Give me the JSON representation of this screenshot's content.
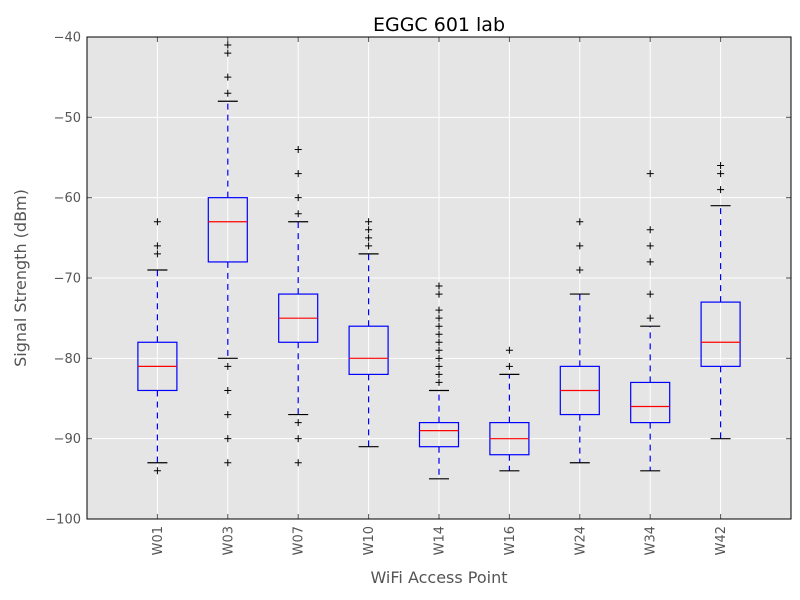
{
  "chart_data": {
    "type": "box",
    "title": "EGGC 601 lab",
    "xlabel": "WiFi Access Point",
    "ylabel": "Signal Strength (dBm)",
    "ylim": [
      -100,
      -40
    ],
    "yticks": [
      -100,
      -90,
      -80,
      -70,
      -60,
      -50,
      -40
    ],
    "ytick_labels": [
      "−100",
      "−90",
      "−80",
      "−70",
      "−60",
      "−50",
      "−40"
    ],
    "grid": true,
    "colors": {
      "background": "#e5e5e5",
      "grid": "#ffffff",
      "box": "#0000ff",
      "median": "#ff0000",
      "caps": "#000000",
      "fliers": "#000000",
      "tick_text": "#555555"
    },
    "categories": [
      "W01",
      "W03",
      "W07",
      "W10",
      "W14",
      "W16",
      "W24",
      "W34",
      "W42"
    ],
    "boxes": [
      {
        "label": "W01",
        "whisker_low": -93,
        "q1": -84,
        "median": -81,
        "q3": -78,
        "whisker_high": -69,
        "outliers": [
          -94,
          -67,
          -66,
          -63
        ]
      },
      {
        "label": "W03",
        "whisker_low": -80,
        "q1": -68,
        "median": -63,
        "q3": -60,
        "whisker_high": -48,
        "outliers": [
          -81,
          -84,
          -87,
          -90,
          -93,
          -47,
          -45,
          -42,
          -41
        ]
      },
      {
        "label": "W07",
        "whisker_low": -87,
        "q1": -78,
        "median": -75,
        "q3": -72,
        "whisker_high": -63,
        "outliers": [
          -88,
          -90,
          -93,
          -62,
          -60,
          -57,
          -54
        ]
      },
      {
        "label": "W10",
        "whisker_low": -91,
        "q1": -82,
        "median": -80,
        "q3": -76,
        "whisker_high": -67,
        "outliers": [
          -66,
          -65,
          -64,
          -63
        ]
      },
      {
        "label": "W14",
        "whisker_low": -95,
        "q1": -91,
        "median": -89,
        "q3": -88,
        "whisker_high": -84,
        "outliers": [
          -83,
          -82,
          -81,
          -80,
          -79,
          -78,
          -77,
          -76,
          -75,
          -74,
          -72,
          -71
        ]
      },
      {
        "label": "W16",
        "whisker_low": -94,
        "q1": -92,
        "median": -90,
        "q3": -88,
        "whisker_high": -82,
        "outliers": [
          -81,
          -79
        ]
      },
      {
        "label": "W24",
        "whisker_low": -93,
        "q1": -87,
        "median": -84,
        "q3": -81,
        "whisker_high": -72,
        "outliers": [
          -69,
          -66,
          -63
        ]
      },
      {
        "label": "W34",
        "whisker_low": -94,
        "q1": -88,
        "median": -86,
        "q3": -83,
        "whisker_high": -76,
        "outliers": [
          -75,
          -72,
          -68,
          -66,
          -64,
          -57
        ]
      },
      {
        "label": "W42",
        "whisker_low": -90,
        "q1": -81,
        "median": -78,
        "q3": -73,
        "whisker_high": -61,
        "outliers": [
          -59,
          -57,
          -56
        ]
      }
    ]
  }
}
